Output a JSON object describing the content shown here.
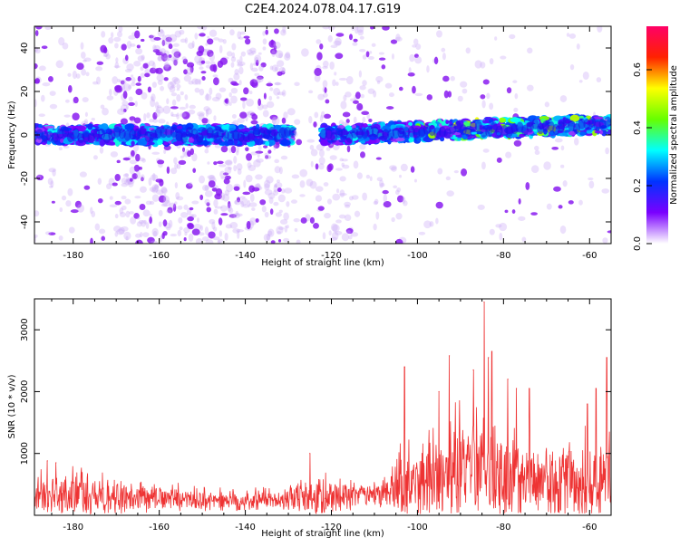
{
  "title": "C2E4.2024.078.04.17.G19",
  "chart_data": [
    {
      "type": "heatmap",
      "xlabel": "Height of straight line (km)",
      "ylabel": "Frequency (Hz)",
      "xlim": [
        -189,
        -55
      ],
      "ylim": [
        -50,
        50
      ],
      "xticks": [
        -180,
        -160,
        -140,
        -120,
        -100,
        -80,
        -60
      ],
      "yticks": [
        -40,
        -20,
        0,
        20,
        40
      ],
      "xtick_labels": [
        "-180",
        "-160",
        "-140",
        "-120",
        "-100",
        "-80",
        "-60"
      ],
      "ytick_labels": [
        "-40",
        "-20",
        "0",
        "20",
        "40"
      ],
      "colorbar": {
        "label": "Normalized spectral amplitude",
        "range": [
          0,
          0.75
        ],
        "ticks": [
          0.0,
          0.2,
          0.4,
          0.6
        ],
        "tick_labels": [
          "0.0",
          "0.2",
          "0.4",
          "0.6"
        ],
        "colors": [
          "#ffffff",
          "#7a00ff",
          "#0033ff",
          "#00ffff",
          "#66ff00",
          "#ffff00",
          "#ff2200",
          "#ff0066"
        ]
      },
      "band": {
        "center_frequency_start_hz": 0,
        "center_frequency_end_hz": 5,
        "halfwidth_hz": 4,
        "gap_km": [
          -129,
          -122
        ]
      }
    },
    {
      "type": "line",
      "xlabel": "Height of straight line (km)",
      "ylabel": "SNR (10 * v/v)",
      "xlim": [
        -189,
        -55
      ],
      "ylim": [
        0,
        3500
      ],
      "xticks": [
        -180,
        -160,
        -140,
        -120,
        -100,
        -80,
        -60
      ],
      "yticks": [
        1000,
        2000,
        3000
      ],
      "xtick_labels": [
        "-180",
        "-160",
        "-140",
        "-120",
        "-100",
        "-80",
        "-60"
      ],
      "ytick_labels": [
        "1000",
        "2000",
        "3000"
      ],
      "color": "#ee3333",
      "envelope": {
        "x": [
          -189,
          -180,
          -170,
          -160,
          -150,
          -140,
          -130,
          -122,
          -115,
          -108,
          -104,
          -100,
          -95,
          -90,
          -85,
          -80,
          -75,
          -70,
          -65,
          -60,
          -55
        ],
        "baseline": [
          250,
          260,
          240,
          220,
          210,
          210,
          230,
          250,
          270,
          290,
          380,
          420,
          500,
          560,
          600,
          520,
          480,
          440,
          400,
          380,
          400
        ],
        "amplitude": [
          450,
          520,
          450,
          300,
          260,
          250,
          280,
          500,
          340,
          300,
          850,
          800,
          1000,
          1200,
          1300,
          1100,
          900,
          800,
          950,
          1000,
          1200
        ]
      },
      "peaks": [
        {
          "x": -84.5,
          "y": 3450
        },
        {
          "x": -82.7,
          "y": 2650
        },
        {
          "x": -92.6,
          "y": 2580
        },
        {
          "x": -83.5,
          "y": 2550
        },
        {
          "x": -103.0,
          "y": 2400
        },
        {
          "x": -87.0,
          "y": 2350
        },
        {
          "x": -79.0,
          "y": 2200
        },
        {
          "x": -77.0,
          "y": 2050
        },
        {
          "x": -74.0,
          "y": 2050
        },
        {
          "x": -95.0,
          "y": 2000
        },
        {
          "x": -56.0,
          "y": 2550
        },
        {
          "x": -58.5,
          "y": 2050
        },
        {
          "x": -60.5,
          "y": 1800
        },
        {
          "x": -125.0,
          "y": 1000
        },
        {
          "x": -186.0,
          "y": 880
        },
        {
          "x": -184.0,
          "y": 850
        }
      ]
    }
  ]
}
